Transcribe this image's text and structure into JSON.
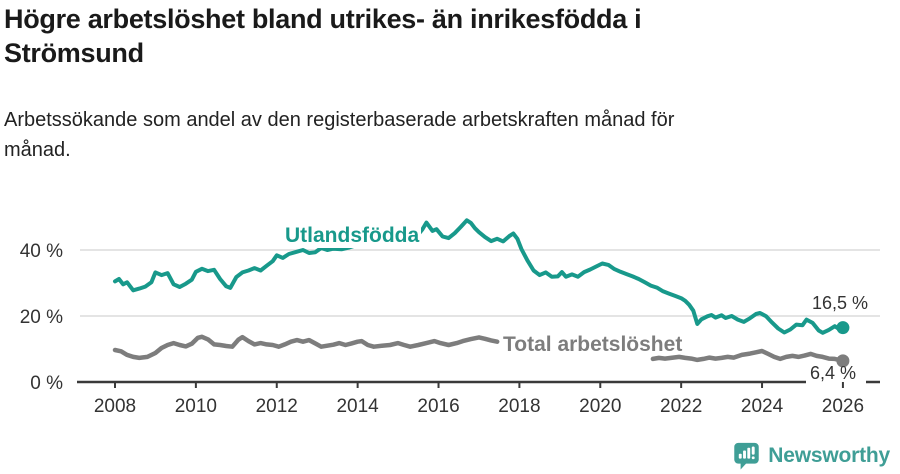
{
  "header": {
    "title_line1": "Högre arbetslöshet bland utrikes- än inrikesfödda i",
    "title_line2": "Strömsund",
    "subtitle_line1": "Arbetssökande som andel av den registerbaserade arbetskraften månad för",
    "subtitle_line2": "månad."
  },
  "chart_data": {
    "type": "line",
    "title": "Högre arbetslöshet bland utrikes- än inrikesfödda i Strömsund",
    "subtitle": "Arbetssökande som andel av den registerbaserade arbetskraften månad för månad.",
    "y_unit": "%",
    "xlim": [
      2008,
      2026
    ],
    "ylim": [
      0,
      53
    ],
    "grid": "horizontal",
    "legend_position": "inline-labels",
    "x_ticks": [
      {
        "value": 2008,
        "label": "2008"
      },
      {
        "value": 2010,
        "label": "2010"
      },
      {
        "value": 2012,
        "label": "2012"
      },
      {
        "value": 2014,
        "label": "2014"
      },
      {
        "value": 2016,
        "label": "2016"
      },
      {
        "value": 2018,
        "label": "2018"
      },
      {
        "value": 2020,
        "label": "2020"
      },
      {
        "value": 2022,
        "label": "2022"
      },
      {
        "value": 2024,
        "label": "2024"
      },
      {
        "value": 2026,
        "label": "2026"
      }
    ],
    "y_ticks": [
      {
        "value": 40,
        "label": "40 %"
      },
      {
        "value": 20,
        "label": "20 %"
      },
      {
        "value": 0,
        "label": "0 %"
      }
    ],
    "series": [
      {
        "id": "utlandsfodda",
        "name": "Utlandsfödda",
        "color": "#18998b",
        "width": 4,
        "end_label": "16,5 %",
        "end_value": 16.5,
        "segments": [
          [
            [
              2008.0,
              30.5
            ],
            [
              2008.1,
              31.2
            ],
            [
              2008.2,
              29.6
            ],
            [
              2008.3,
              30.2
            ],
            [
              2008.45,
              27.8
            ],
            [
              2008.6,
              28.3
            ],
            [
              2008.75,
              28.9
            ],
            [
              2008.9,
              30.2
            ],
            [
              2009.0,
              33.2
            ],
            [
              2009.15,
              32.4
            ],
            [
              2009.3,
              33.0
            ],
            [
              2009.45,
              29.6
            ],
            [
              2009.6,
              28.8
            ],
            [
              2009.75,
              29.8
            ],
            [
              2009.9,
              31.0
            ],
            [
              2010.0,
              33.4
            ],
            [
              2010.15,
              34.3
            ],
            [
              2010.3,
              33.6
            ],
            [
              2010.45,
              34.0
            ],
            [
              2010.6,
              31.2
            ],
            [
              2010.75,
              29.0
            ],
            [
              2010.85,
              28.5
            ],
            [
              2011.0,
              31.8
            ],
            [
              2011.15,
              33.2
            ],
            [
              2011.3,
              33.8
            ],
            [
              2011.45,
              34.5
            ],
            [
              2011.6,
              33.8
            ],
            [
              2011.75,
              35.2
            ],
            [
              2011.9,
              36.6
            ],
            [
              2012.0,
              38.4
            ],
            [
              2012.15,
              37.6
            ],
            [
              2012.3,
              38.8
            ],
            [
              2012.5,
              39.5
            ],
            [
              2012.65,
              40.0
            ],
            [
              2012.8,
              39.1
            ],
            [
              2012.95,
              39.3
            ],
            [
              2013.1,
              40.6
            ],
            [
              2013.25,
              40.0
            ],
            [
              2013.4,
              40.4
            ],
            [
              2013.6,
              40.2
            ],
            [
              2013.8,
              40.8
            ],
            [
              2014.0,
              41.6
            ],
            [
              2014.2,
              42.4
            ],
            [
              2014.4,
              43.4
            ],
            [
              2014.55,
              44.2
            ],
            [
              2014.7,
              43.1
            ],
            [
              2014.9,
              44.0
            ],
            [
              2015.0,
              43.7
            ],
            [
              2015.15,
              42.2
            ],
            [
              2015.3,
              42.9
            ],
            [
              2015.45,
              44.0
            ],
            [
              2015.6,
              46.2
            ],
            [
              2015.7,
              48.3
            ],
            [
              2015.85,
              45.8
            ],
            [
              2015.95,
              46.3
            ],
            [
              2016.1,
              44.1
            ],
            [
              2016.25,
              43.6
            ],
            [
              2016.4,
              45.1
            ],
            [
              2016.55,
              47.0
            ],
            [
              2016.7,
              49.0
            ],
            [
              2016.8,
              48.2
            ],
            [
              2016.9,
              46.6
            ],
            [
              2017.0,
              45.4
            ],
            [
              2017.15,
              43.9
            ],
            [
              2017.3,
              42.7
            ],
            [
              2017.45,
              43.4
            ],
            [
              2017.6,
              42.6
            ],
            [
              2017.75,
              44.2
            ],
            [
              2017.85,
              45.0
            ],
            [
              2017.95,
              43.4
            ],
            [
              2018.05,
              40.3
            ],
            [
              2018.2,
              36.8
            ],
            [
              2018.35,
              33.8
            ],
            [
              2018.5,
              32.4
            ],
            [
              2018.65,
              33.2
            ],
            [
              2018.8,
              31.9
            ],
            [
              2018.95,
              32.0
            ],
            [
              2019.05,
              33.3
            ],
            [
              2019.15,
              31.9
            ],
            [
              2019.3,
              32.6
            ],
            [
              2019.45,
              31.9
            ],
            [
              2019.6,
              33.3
            ],
            [
              2019.75,
              34.1
            ],
            [
              2019.9,
              35.0
            ],
            [
              2020.05,
              35.9
            ],
            [
              2020.2,
              35.5
            ],
            [
              2020.35,
              34.2
            ],
            [
              2020.5,
              33.4
            ],
            [
              2020.65,
              32.7
            ],
            [
              2020.8,
              32.0
            ],
            [
              2020.95,
              31.2
            ],
            [
              2021.1,
              30.2
            ],
            [
              2021.25,
              29.2
            ],
            [
              2021.4,
              28.6
            ],
            [
              2021.55,
              27.5
            ],
            [
              2021.7,
              26.8
            ],
            [
              2021.85,
              26.1
            ],
            [
              2022.0,
              25.4
            ],
            [
              2022.1,
              24.6
            ],
            [
              2022.2,
              23.4
            ],
            [
              2022.3,
              21.6
            ],
            [
              2022.4,
              17.6
            ],
            [
              2022.5,
              19.0
            ],
            [
              2022.65,
              19.9
            ],
            [
              2022.75,
              20.3
            ],
            [
              2022.85,
              19.5
            ],
            [
              2023.0,
              20.2
            ],
            [
              2023.1,
              19.4
            ],
            [
              2023.25,
              20.0
            ],
            [
              2023.4,
              18.9
            ],
            [
              2023.55,
              18.2
            ],
            [
              2023.7,
              19.3
            ],
            [
              2023.85,
              20.6
            ],
            [
              2023.95,
              20.9
            ],
            [
              2024.1,
              19.9
            ],
            [
              2024.25,
              18.0
            ],
            [
              2024.4,
              16.2
            ],
            [
              2024.55,
              15.0
            ],
            [
              2024.7,
              15.9
            ],
            [
              2024.85,
              17.4
            ],
            [
              2025.0,
              17.2
            ],
            [
              2025.1,
              18.9
            ],
            [
              2025.25,
              17.9
            ],
            [
              2025.4,
              15.6
            ],
            [
              2025.5,
              14.9
            ],
            [
              2025.65,
              15.8
            ],
            [
              2025.8,
              16.9
            ],
            [
              2025.9,
              16.1
            ],
            [
              2026.0,
              16.5
            ]
          ]
        ]
      },
      {
        "id": "total",
        "name": "Total arbetslöshet",
        "color": "#7d7d7d",
        "width": 4.5,
        "end_label": "6,4 %",
        "end_value": 6.4,
        "segments": [
          [
            [
              2008.0,
              9.7
            ],
            [
              2008.15,
              9.3
            ],
            [
              2008.3,
              8.2
            ],
            [
              2008.45,
              7.6
            ],
            [
              2008.6,
              7.3
            ],
            [
              2008.8,
              7.6
            ],
            [
              2009.0,
              8.8
            ],
            [
              2009.15,
              10.3
            ],
            [
              2009.3,
              11.2
            ],
            [
              2009.45,
              11.8
            ],
            [
              2009.6,
              11.2
            ],
            [
              2009.75,
              10.8
            ],
            [
              2009.9,
              11.6
            ],
            [
              2010.05,
              13.4
            ],
            [
              2010.15,
              13.7
            ],
            [
              2010.3,
              12.9
            ],
            [
              2010.45,
              11.4
            ],
            [
              2010.6,
              11.2
            ],
            [
              2010.75,
              10.9
            ],
            [
              2010.9,
              10.7
            ],
            [
              2011.05,
              12.8
            ],
            [
              2011.15,
              13.6
            ],
            [
              2011.3,
              12.4
            ],
            [
              2011.45,
              11.4
            ],
            [
              2011.6,
              11.8
            ],
            [
              2011.75,
              11.4
            ],
            [
              2011.9,
              11.2
            ],
            [
              2012.05,
              10.7
            ],
            [
              2012.2,
              11.4
            ],
            [
              2012.35,
              12.2
            ],
            [
              2012.5,
              12.7
            ],
            [
              2012.65,
              12.2
            ],
            [
              2012.8,
              12.7
            ],
            [
              2012.95,
              11.7
            ],
            [
              2013.1,
              10.7
            ],
            [
              2013.25,
              11.0
            ],
            [
              2013.4,
              11.3
            ],
            [
              2013.55,
              11.8
            ],
            [
              2013.7,
              11.2
            ],
            [
              2013.85,
              11.7
            ],
            [
              2014.0,
              12.2
            ],
            [
              2014.1,
              12.4
            ],
            [
              2014.25,
              11.2
            ],
            [
              2014.4,
              10.7
            ],
            [
              2014.6,
              11.0
            ],
            [
              2014.8,
              11.2
            ],
            [
              2015.0,
              11.8
            ],
            [
              2015.15,
              11.2
            ],
            [
              2015.3,
              10.7
            ],
            [
              2015.5,
              11.2
            ],
            [
              2015.7,
              11.8
            ],
            [
              2015.9,
              12.4
            ],
            [
              2016.05,
              11.8
            ],
            [
              2016.25,
              11.2
            ],
            [
              2016.45,
              11.8
            ],
            [
              2016.6,
              12.4
            ],
            [
              2016.8,
              13.0
            ],
            [
              2017.0,
              13.5
            ],
            [
              2017.15,
              13.1
            ],
            [
              2017.3,
              12.6
            ],
            [
              2017.45,
              12.2
            ]
          ],
          [
            [
              2021.3,
              7.0
            ],
            [
              2021.45,
              7.3
            ],
            [
              2021.6,
              7.1
            ],
            [
              2021.8,
              7.4
            ],
            [
              2021.95,
              7.6
            ],
            [
              2022.1,
              7.3
            ],
            [
              2022.25,
              7.1
            ],
            [
              2022.4,
              6.7
            ],
            [
              2022.55,
              7.0
            ],
            [
              2022.7,
              7.4
            ],
            [
              2022.85,
              7.1
            ],
            [
              2023.0,
              7.3
            ],
            [
              2023.15,
              7.6
            ],
            [
              2023.3,
              7.4
            ],
            [
              2023.5,
              8.2
            ],
            [
              2023.7,
              8.6
            ],
            [
              2023.85,
              9.0
            ],
            [
              2024.0,
              9.4
            ],
            [
              2024.15,
              8.5
            ],
            [
              2024.3,
              7.6
            ],
            [
              2024.45,
              7.0
            ],
            [
              2024.6,
              7.6
            ],
            [
              2024.75,
              7.9
            ],
            [
              2024.9,
              7.6
            ],
            [
              2025.05,
              8.0
            ],
            [
              2025.2,
              8.5
            ],
            [
              2025.35,
              7.9
            ],
            [
              2025.5,
              7.6
            ],
            [
              2025.65,
              7.1
            ],
            [
              2025.8,
              7.0
            ],
            [
              2025.9,
              6.7
            ],
            [
              2026.0,
              6.4
            ]
          ]
        ]
      }
    ]
  },
  "colors": {
    "accent_teal": "#18998b",
    "line_gray": "#7d7d7d",
    "brand_teal": "#3f9e96",
    "grid": "#dcdcdc",
    "axis": "#3a3a3a",
    "text": "#333333"
  },
  "footer": {
    "brand": "Newsworthy"
  }
}
